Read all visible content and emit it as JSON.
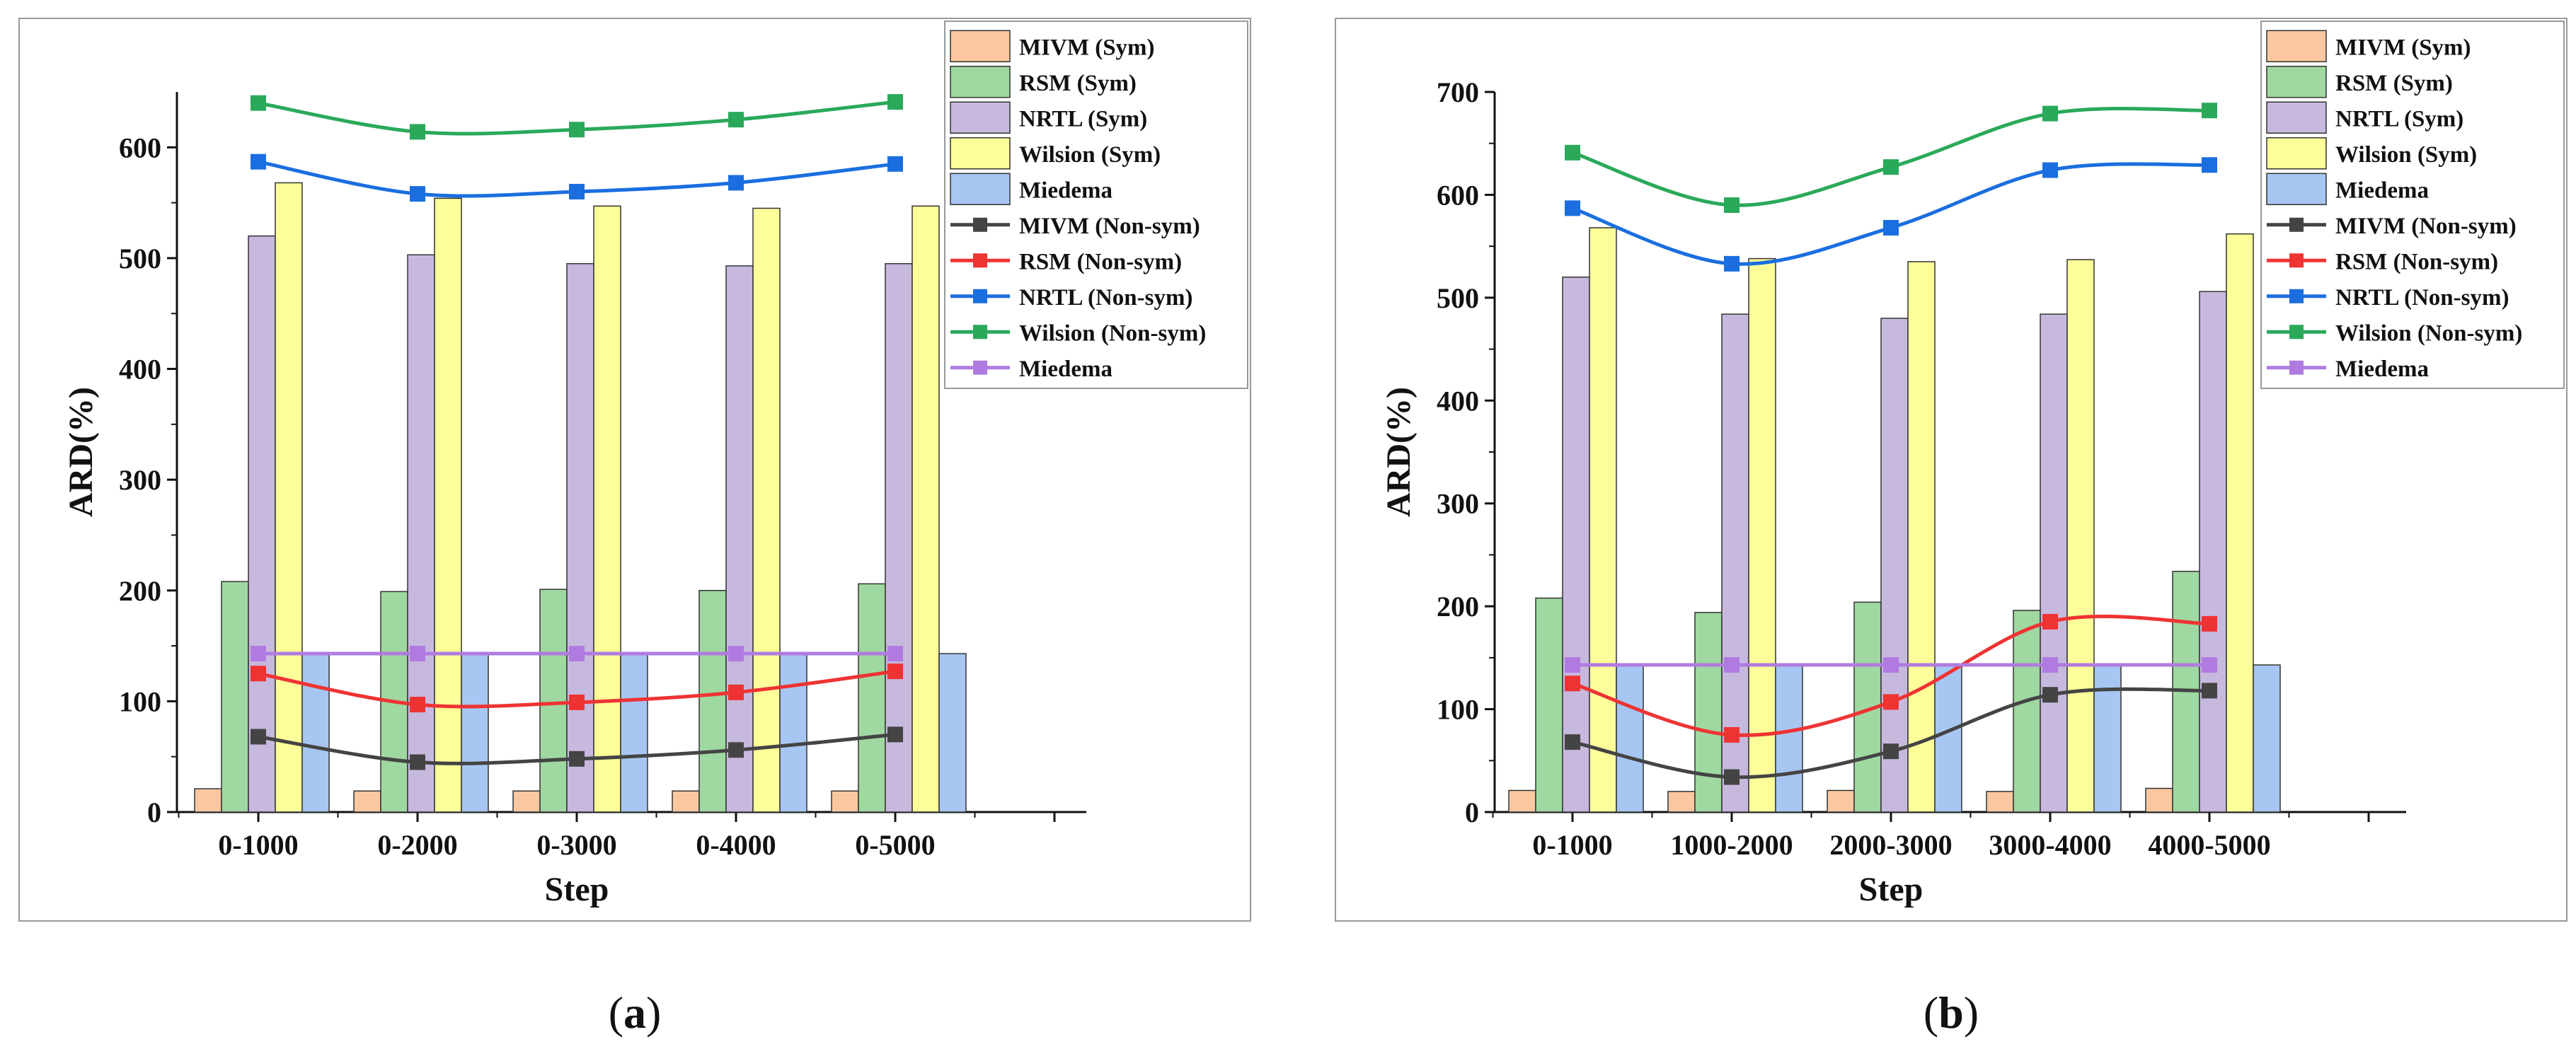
{
  "chart_data": [
    {
      "panel": "a",
      "type": "bar",
      "xlabel": "Step",
      "ylabel": "ARD(%)",
      "ylim": [
        0,
        650
      ],
      "yticks": [
        0,
        100,
        200,
        300,
        400,
        500,
        600
      ],
      "categories": [
        "0-1000",
        "0-2000",
        "0-3000",
        "0-4000",
        "0-5000"
      ],
      "bar_series": [
        {
          "name": "MIVM (Sym)",
          "color": "#f9c8a0",
          "values": [
            21,
            19,
            19,
            19,
            19
          ]
        },
        {
          "name": "RSM (Sym)",
          "color": "#9fd8a0",
          "values": [
            208,
            199,
            201,
            200,
            206
          ]
        },
        {
          "name": "NRTL (Sym)",
          "color": "#c7b9de",
          "values": [
            520,
            503,
            495,
            493,
            495
          ]
        },
        {
          "name": "Wilsion (Sym)",
          "color": "#fdfd9a",
          "values": [
            568,
            554,
            547,
            545,
            547
          ]
        },
        {
          "name": "Miedema",
          "color": "#a7c6f2",
          "values": [
            143,
            143,
            143,
            143,
            143
          ]
        }
      ],
      "line_series": [
        {
          "name": "MIVM (Non-sym)",
          "color": "#444444",
          "values": [
            68,
            45,
            48,
            56,
            70
          ]
        },
        {
          "name": "RSM (Non-sym)",
          "color": "#ee3333",
          "values": [
            125,
            97,
            99,
            108,
            127
          ]
        },
        {
          "name": "NRTL (Non-sym)",
          "color": "#1a6ee0",
          "values": [
            587,
            558,
            560,
            568,
            585
          ]
        },
        {
          "name": "Wilsion (Non-sym)",
          "color": "#2aa95a",
          "values": [
            640,
            614,
            616,
            625,
            641
          ]
        },
        {
          "name": "Miedema",
          "color": "#b07be0",
          "values": [
            143,
            143,
            143,
            143,
            143
          ]
        }
      ],
      "label_text": [
        "(",
        "a",
        ")"
      ]
    },
    {
      "panel": "b",
      "type": "bar",
      "xlabel": "Step",
      "ylabel": "ARD(%)",
      "ylim": [
        0,
        700
      ],
      "yticks": [
        0,
        100,
        200,
        300,
        400,
        500,
        600,
        700
      ],
      "categories": [
        "0-1000",
        "1000-2000",
        "2000-3000",
        "3000-4000",
        "4000-5000"
      ],
      "bar_series": [
        {
          "name": "MIVM (Sym)",
          "color": "#f9c8a0",
          "values": [
            21,
            20,
            21,
            20,
            23
          ]
        },
        {
          "name": "RSM (Sym)",
          "color": "#9fd8a0",
          "values": [
            208,
            194,
            204,
            196,
            234
          ]
        },
        {
          "name": "NRTL (Sym)",
          "color": "#c7b9de",
          "values": [
            520,
            484,
            480,
            484,
            506
          ]
        },
        {
          "name": "Wilsion (Sym)",
          "color": "#fdfd9a",
          "values": [
            568,
            538,
            535,
            537,
            562
          ]
        },
        {
          "name": "Miedema",
          "color": "#a7c6f2",
          "values": [
            143,
            143,
            143,
            143,
            143
          ]
        }
      ],
      "line_series": [
        {
          "name": "MIVM (Non-sym)",
          "color": "#444444",
          "values": [
            68,
            34,
            59,
            114,
            118
          ]
        },
        {
          "name": "RSM (Non-sym)",
          "color": "#ee3333",
          "values": [
            125,
            75,
            107,
            185,
            183
          ]
        },
        {
          "name": "NRTL (Non-sym)",
          "color": "#1a6ee0",
          "values": [
            587,
            533,
            568,
            624,
            629
          ]
        },
        {
          "name": "Wilsion (Non-sym)",
          "color": "#2aa95a",
          "values": [
            641,
            590,
            627,
            679,
            682
          ]
        },
        {
          "name": "Miedema",
          "color": "#b07be0",
          "values": [
            143,
            143,
            143,
            143,
            143
          ]
        }
      ],
      "label_text": [
        "(",
        "b",
        ")"
      ]
    }
  ]
}
